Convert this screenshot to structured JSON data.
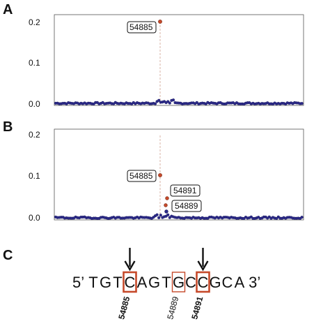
{
  "colors": {
    "highlight": "#c64a2b",
    "points": "#2c2a8a",
    "frame": "#555555",
    "dashed_line": "#d9b3a6"
  },
  "panels": {
    "A": {
      "letter": "A",
      "ticks": [
        "0.2",
        "0.1",
        "0.0"
      ]
    },
    "B": {
      "letter": "B",
      "ticks": [
        "0.2",
        "0.1",
        "0.0"
      ]
    },
    "C": {
      "letter": "C"
    }
  },
  "chart_data": [
    {
      "type": "scatter",
      "panel": "A",
      "ylim": [
        0,
        0.2
      ],
      "yticks": [
        0.0,
        0.1,
        0.2
      ],
      "highlighted_points": [
        {
          "label": "54885",
          "y": 0.195
        }
      ],
      "background_level": 0.002
    },
    {
      "type": "scatter",
      "panel": "B",
      "ylim": [
        0,
        0.2
      ],
      "yticks": [
        0.0,
        0.1,
        0.2
      ],
      "highlighted_points": [
        {
          "label": "54885",
          "y": 0.104
        },
        {
          "label": "54891",
          "y": 0.047
        },
        {
          "label": "54889",
          "y": 0.031
        }
      ],
      "background_level": 0.002
    }
  ],
  "sequence": {
    "prime5": "5’",
    "prime3": "3’",
    "bases": [
      "T",
      "G",
      "T",
      "C",
      "A",
      "G",
      "T",
      "G",
      "C",
      "C",
      "G",
      "C",
      "A"
    ],
    "boxed": [
      {
        "index": 3,
        "style": "bold",
        "label": "54885",
        "arrow": true
      },
      {
        "index": 7,
        "style": "thin",
        "label": "54889",
        "arrow": false
      },
      {
        "index": 9,
        "style": "bold",
        "label": "54891",
        "arrow": true
      }
    ]
  }
}
